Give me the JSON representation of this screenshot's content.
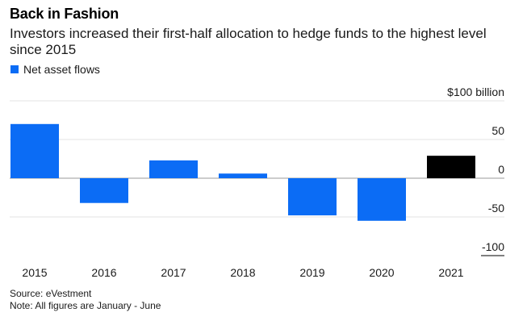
{
  "title": "Back in Fashion",
  "subtitle": "Investors increased their first-half allocation to hedge funds to the highest level since 2015",
  "legend": {
    "label": "Net asset flows",
    "color": "#0b6cf5"
  },
  "chart_data": {
    "type": "bar",
    "title": "Back in Fashion",
    "subtitle": "Investors increased their first-half allocation to hedge funds to the highest level since 2015",
    "xlabel": "",
    "ylabel": "$100 billion",
    "categories": [
      "2015",
      "2016",
      "2017",
      "2018",
      "2019",
      "2020",
      "2021"
    ],
    "series": [
      {
        "name": "Net asset flows",
        "values": [
          70,
          -32,
          23,
          6,
          -48,
          -55,
          29
        ]
      }
    ],
    "highlight_category": "2021",
    "colors": {
      "default": "#0b6cf5",
      "highlight": "#000000"
    },
    "ylim": [
      -100,
      100
    ],
    "yticks": [
      {
        "value": 100,
        "label": "$100 billion"
      },
      {
        "value": 50,
        "label": "50"
      },
      {
        "value": 0,
        "label": "0"
      },
      {
        "value": -50,
        "label": "-50"
      },
      {
        "value": -100,
        "label": "-100"
      }
    ],
    "grid": true,
    "legend_position": "top-left"
  },
  "footer": {
    "source": "Source: eVestment",
    "note": "Note: All figures are January - June"
  }
}
